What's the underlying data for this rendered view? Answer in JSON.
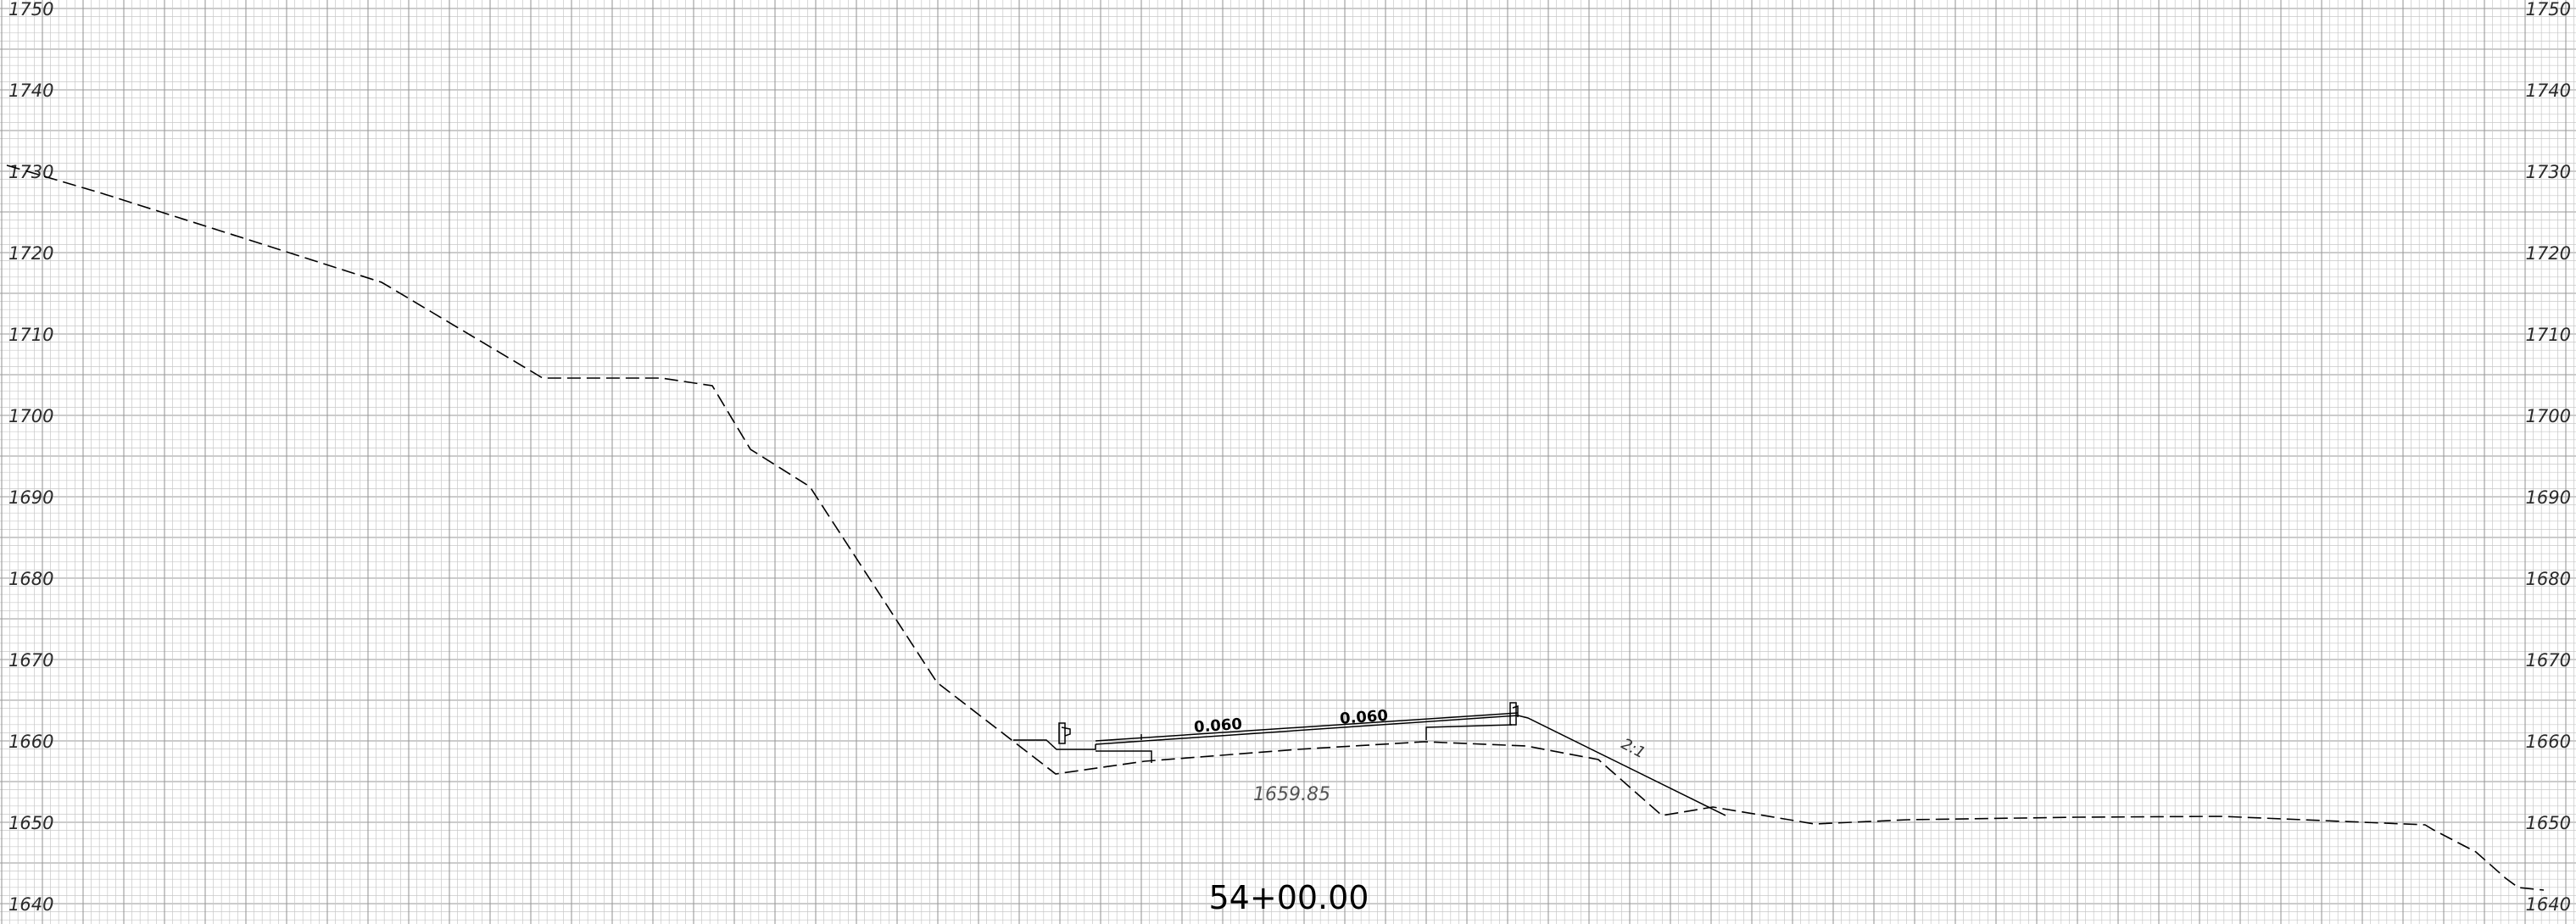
{
  "elevation_labels": [
    "1750",
    "1740",
    "1730",
    "1720",
    "1710",
    "1700",
    "1690",
    "1680",
    "1670",
    "1660",
    "1650",
    "1640"
  ],
  "station": "54+00.00",
  "annotations": {
    "slope_left": "0.060",
    "slope_right": "0.060",
    "finished_grade_elevation": "1659.85",
    "side_slope_ratio": "2:1"
  },
  "colors": {
    "grid_minor": "#c8c8c8",
    "grid_major": "#9a9a9a",
    "line": "#000000"
  }
}
